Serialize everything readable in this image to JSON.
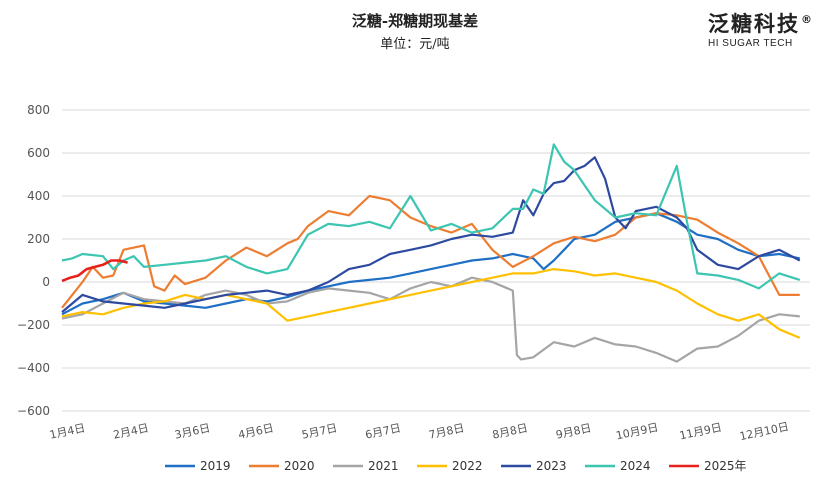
{
  "header": {
    "title": "泛糖-郑糖期现基差",
    "subtitle": "单位：元/吨"
  },
  "brand": {
    "name": "泛糖科技",
    "registered": "®",
    "english": "HI SUGAR TECH"
  },
  "chart_data": {
    "type": "line",
    "title": "泛糖-郑糖期现基差",
    "ylabel": "单位：元/吨",
    "xlabel": "",
    "ylim": [
      -600,
      800
    ],
    "yticks": [
      800,
      600,
      400,
      200,
      0,
      -200,
      -400,
      -600
    ],
    "x_domain": [
      0,
      365
    ],
    "x_ticks": [
      {
        "label": "1月4日",
        "day": 3
      },
      {
        "label": "2月4日",
        "day": 34
      },
      {
        "label": "3月6日",
        "day": 64
      },
      {
        "label": "4月6日",
        "day": 95
      },
      {
        "label": "5月7日",
        "day": 126
      },
      {
        "label": "6月7日",
        "day": 157
      },
      {
        "label": "7月8日",
        "day": 188
      },
      {
        "label": "8月8日",
        "day": 219
      },
      {
        "label": "9月8日",
        "day": 250
      },
      {
        "label": "10月9日",
        "day": 281
      },
      {
        "label": "11月9日",
        "day": 312
      },
      {
        "label": "12月10日",
        "day": 343
      }
    ],
    "grid": true,
    "legend_position": "bottom",
    "series": [
      {
        "name": "2019",
        "color": "#1f6fc5",
        "x": [
          0,
          10,
          20,
          30,
          40,
          50,
          60,
          70,
          80,
          90,
          100,
          110,
          120,
          130,
          140,
          150,
          160,
          170,
          180,
          190,
          200,
          210,
          220,
          225,
          230,
          235,
          240,
          245,
          250,
          260,
          270,
          280,
          290,
          300,
          310,
          320,
          330,
          340,
          350,
          360
        ],
        "y": [
          -150,
          -100,
          -80,
          -50,
          -90,
          -100,
          -110,
          -120,
          -100,
          -80,
          -90,
          -70,
          -40,
          -20,
          0,
          10,
          20,
          40,
          60,
          80,
          100,
          110,
          130,
          120,
          110,
          60,
          100,
          150,
          200,
          220,
          280,
          300,
          320,
          280,
          220,
          200,
          150,
          120,
          130,
          110
        ]
      },
      {
        "name": "2020",
        "color": "#ed7d31",
        "x": [
          0,
          5,
          10,
          15,
          20,
          25,
          30,
          40,
          45,
          50,
          55,
          60,
          70,
          80,
          90,
          100,
          110,
          115,
          120,
          130,
          140,
          150,
          160,
          170,
          180,
          190,
          200,
          210,
          220,
          230,
          240,
          250,
          260,
          270,
          280,
          290,
          300,
          310,
          320,
          330,
          340,
          350,
          360
        ],
        "y": [
          -120,
          -60,
          0,
          70,
          20,
          30,
          150,
          170,
          -20,
          -40,
          30,
          -10,
          20,
          100,
          160,
          120,
          180,
          200,
          260,
          330,
          310,
          400,
          380,
          300,
          260,
          230,
          270,
          150,
          70,
          120,
          180,
          210,
          190,
          220,
          300,
          320,
          310,
          290,
          230,
          180,
          120,
          -60,
          -60
        ]
      },
      {
        "name": "2021",
        "color": "#a5a5a5",
        "x": [
          0,
          10,
          20,
          30,
          40,
          50,
          60,
          70,
          80,
          90,
          100,
          110,
          120,
          130,
          140,
          150,
          160,
          170,
          180,
          190,
          200,
          210,
          220,
          222,
          224,
          230,
          240,
          250,
          260,
          270,
          280,
          290,
          300,
          310,
          320,
          330,
          340,
          350,
          360
        ],
        "y": [
          -170,
          -150,
          -100,
          -50,
          -80,
          -90,
          -100,
          -60,
          -40,
          -60,
          -100,
          -90,
          -50,
          -30,
          -40,
          -50,
          -80,
          -30,
          0,
          -20,
          20,
          0,
          -40,
          -340,
          -360,
          -350,
          -280,
          -300,
          -260,
          -290,
          -300,
          -330,
          -370,
          -310,
          -300,
          -250,
          -180,
          -150,
          -160
        ]
      },
      {
        "name": "2022",
        "color": "#ffc000",
        "x": [
          0,
          10,
          20,
          30,
          40,
          50,
          60,
          70,
          80,
          90,
          100,
          110,
          120,
          130,
          140,
          150,
          160,
          170,
          180,
          190,
          200,
          210,
          220,
          230,
          240,
          250,
          260,
          270,
          280,
          290,
          300,
          310,
          320,
          330,
          340,
          350,
          360
        ],
        "y": [
          -160,
          -140,
          -150,
          -120,
          -100,
          -90,
          -60,
          -80,
          -60,
          -80,
          -100,
          -180,
          -160,
          -140,
          -120,
          -100,
          -80,
          -60,
          -40,
          -20,
          0,
          20,
          40,
          40,
          60,
          50,
          30,
          40,
          20,
          0,
          -40,
          -100,
          -150,
          -180,
          -150,
          -220,
          -260
        ]
      },
      {
        "name": "2023",
        "color": "#2e4aa0",
        "x": [
          0,
          10,
          20,
          30,
          40,
          50,
          60,
          70,
          80,
          90,
          100,
          110,
          120,
          130,
          140,
          150,
          160,
          170,
          180,
          190,
          200,
          210,
          220,
          225,
          230,
          235,
          240,
          245,
          250,
          255,
          260,
          265,
          270,
          275,
          280,
          290,
          300,
          305,
          310,
          320,
          330,
          340,
          350,
          360
        ],
        "y": [
          -140,
          -60,
          -90,
          -100,
          -110,
          -120,
          -100,
          -80,
          -60,
          -50,
          -40,
          -60,
          -40,
          0,
          60,
          80,
          130,
          150,
          170,
          200,
          220,
          210,
          230,
          380,
          310,
          410,
          460,
          470,
          520,
          540,
          580,
          480,
          300,
          250,
          330,
          350,
          300,
          250,
          150,
          80,
          60,
          120,
          150,
          100
        ]
      },
      {
        "name": "2024",
        "color": "#3cc5b0",
        "x": [
          0,
          5,
          10,
          20,
          25,
          30,
          35,
          40,
          50,
          60,
          70,
          80,
          90,
          100,
          110,
          120,
          130,
          140,
          150,
          160,
          170,
          180,
          190,
          200,
          210,
          220,
          225,
          230,
          235,
          240,
          245,
          250,
          260,
          270,
          280,
          290,
          300,
          305,
          310,
          320,
          330,
          340,
          350,
          360
        ],
        "y": [
          100,
          110,
          130,
          120,
          60,
          100,
          120,
          70,
          80,
          90,
          100,
          120,
          70,
          40,
          60,
          220,
          270,
          260,
          280,
          250,
          400,
          240,
          270,
          230,
          250,
          340,
          340,
          430,
          410,
          640,
          560,
          520,
          380,
          300,
          320,
          310,
          540,
          280,
          40,
          30,
          10,
          -30,
          40,
          10
        ]
      },
      {
        "name": "2025年",
        "color": "#e8201c",
        "x": [
          0,
          4,
          8,
          12,
          16,
          20,
          24,
          28,
          32
        ],
        "y": [
          5,
          20,
          30,
          60,
          70,
          80,
          100,
          100,
          90
        ]
      }
    ]
  }
}
